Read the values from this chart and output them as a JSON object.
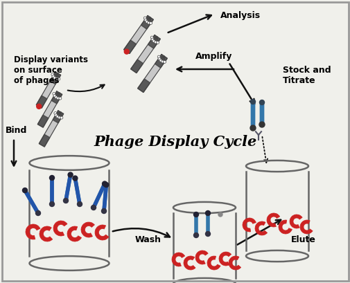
{
  "title": "Phage Display Cycle",
  "bg_color": "#f0f0eb",
  "border_color": "#888888",
  "labels": {
    "display": "Display variants\non surface\nof phages",
    "analysis": "Analysis",
    "amplify": "Amplify",
    "stock": "Stock and\nTitrate",
    "bind": "Bind",
    "wash": "Wash",
    "elute": "Elute"
  },
  "phage_body_color": "#c8c8c8",
  "phage_dark_color": "#444444",
  "phage_tip_color": "#cc2222",
  "phage_fiber_color": "#999999",
  "antibody_color": "#cc2222",
  "phage_stick_color": "#3377aa",
  "phage_tip_dark": "#222222",
  "beaker_color": "#666666",
  "arrow_color": "#111111"
}
